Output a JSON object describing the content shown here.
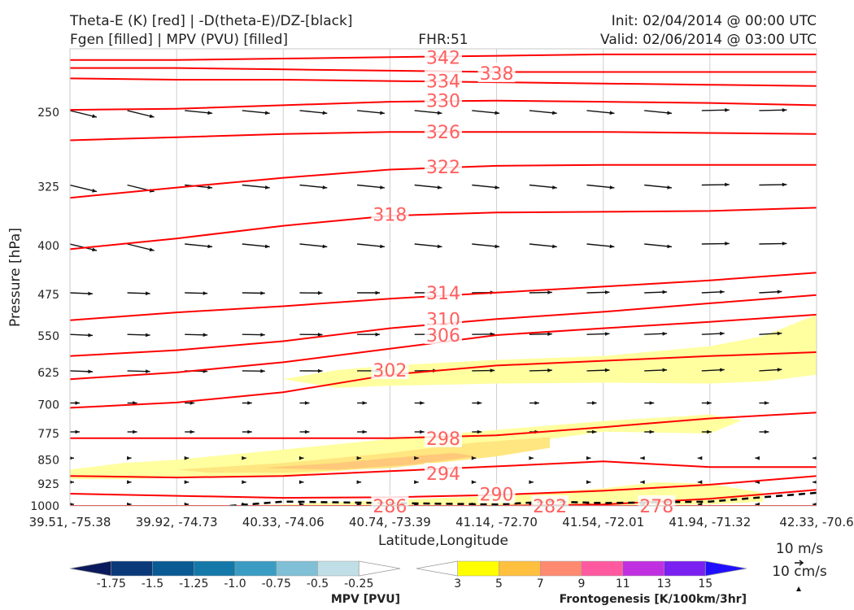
{
  "header": {
    "left_line1": "Theta-E (K) [red] | -D(theta-E)/DZ-[black]",
    "left_line2": "Fgen [filled] | MPV (PVU) [filled]",
    "center": "FHR:51",
    "right_line1": "Init: 02/04/2014 @ 00:00 UTC",
    "right_line2": "Valid: 02/06/2014 @ 03:00 UTC"
  },
  "chart_data": {
    "type": "cross-section",
    "xlabel": "Latitude,Longitude",
    "ylabel": "Pressure [hPa]",
    "xlim": [
      0,
      7
    ],
    "ylim": [
      200,
      1000
    ],
    "y_log_scale": true,
    "y_inverted": true,
    "x_ticks": [
      {
        "pos": 0,
        "label": "39.51, -75.38"
      },
      {
        "pos": 1,
        "label": "39.92, -74.73"
      },
      {
        "pos": 2,
        "label": "40.33, -74.06"
      },
      {
        "pos": 3,
        "label": "40.74, -73.39"
      },
      {
        "pos": 4,
        "label": "41.14, -72.70"
      },
      {
        "pos": 5,
        "label": "41.54, -72.01"
      },
      {
        "pos": 6,
        "label": "41.94, -71.32"
      },
      {
        "pos": 7,
        "label": "42.33, -70.6"
      }
    ],
    "y_ticks": [
      250,
      325,
      400,
      475,
      550,
      625,
      700,
      775,
      850,
      925,
      1000
    ],
    "theta_e_color": "#ff0000",
    "theta_e_label_color": "#ff6060",
    "theta_e_contours": [
      {
        "value": "342",
        "label": {
          "x": 3.5,
          "p": 206
        },
        "points": [
          [
            0,
            208
          ],
          [
            1,
            208
          ],
          [
            2,
            207
          ],
          [
            3,
            206
          ],
          [
            4,
            205
          ],
          [
            5,
            204
          ],
          [
            6,
            204
          ],
          [
            7,
            204
          ]
        ]
      },
      {
        "value": "338",
        "label": {
          "x": 4.0,
          "p": 218
        },
        "points": [
          [
            0,
            214
          ],
          [
            1,
            214
          ],
          [
            2,
            215
          ],
          [
            3,
            216
          ],
          [
            4,
            217
          ],
          [
            5,
            217
          ],
          [
            6,
            217
          ],
          [
            7,
            217
          ]
        ]
      },
      {
        "value": "334",
        "label": {
          "x": 3.5,
          "p": 224
        },
        "points": [
          [
            0,
            222
          ],
          [
            1,
            223
          ],
          [
            2,
            223
          ],
          [
            3,
            224
          ],
          [
            4,
            225
          ],
          [
            5,
            226
          ],
          [
            6,
            227
          ],
          [
            7,
            228
          ]
        ]
      },
      {
        "value": "330",
        "label": {
          "x": 3.5,
          "p": 240
        },
        "points": [
          [
            0,
            248
          ],
          [
            1,
            247
          ],
          [
            2,
            244
          ],
          [
            3,
            241
          ],
          [
            4,
            240
          ],
          [
            5,
            241
          ],
          [
            6,
            242
          ],
          [
            7,
            244
          ]
        ]
      },
      {
        "value": "326",
        "label": {
          "x": 3.5,
          "p": 268
        },
        "points": [
          [
            0,
            276
          ],
          [
            1,
            273
          ],
          [
            2,
            270
          ],
          [
            3,
            268
          ],
          [
            4,
            268
          ],
          [
            5,
            268
          ],
          [
            6,
            269
          ],
          [
            7,
            270
          ]
        ]
      },
      {
        "value": "322",
        "label": {
          "x": 3.5,
          "p": 303
        },
        "points": [
          [
            0,
            338
          ],
          [
            1,
            326
          ],
          [
            2,
            315
          ],
          [
            3,
            306
          ],
          [
            4,
            302
          ],
          [
            5,
            301
          ],
          [
            6,
            301
          ],
          [
            7,
            301
          ]
        ]
      },
      {
        "value": "318",
        "label": {
          "x": 3.0,
          "p": 358
        },
        "points": [
          [
            0,
            405
          ],
          [
            1,
            390
          ],
          [
            2,
            373
          ],
          [
            3,
            360
          ],
          [
            4,
            356
          ],
          [
            5,
            355
          ],
          [
            6,
            354
          ],
          [
            7,
            350
          ]
        ]
      },
      {
        "value": "314",
        "label": {
          "x": 3.5,
          "p": 472
        },
        "points": [
          [
            0,
            520
          ],
          [
            1,
            506
          ],
          [
            2,
            495
          ],
          [
            3,
            482
          ],
          [
            4,
            472
          ],
          [
            5,
            462
          ],
          [
            6,
            452
          ],
          [
            7,
            440
          ]
        ]
      },
      {
        "value": "310",
        "label": {
          "x": 3.5,
          "p": 518
        },
        "points": [
          [
            0,
            590
          ],
          [
            1,
            578
          ],
          [
            2,
            560
          ],
          [
            3,
            535
          ],
          [
            4,
            518
          ],
          [
            5,
            505
          ],
          [
            6,
            490
          ],
          [
            7,
            476
          ]
        ]
      },
      {
        "value": "306",
        "label": {
          "x": 3.5,
          "p": 548
        },
        "points": [
          [
            0,
            640
          ],
          [
            1,
            625
          ],
          [
            2,
            603
          ],
          [
            3,
            575
          ],
          [
            4,
            548
          ],
          [
            5,
            535
          ],
          [
            6,
            523
          ],
          [
            7,
            510
          ]
        ]
      },
      {
        "value": "302",
        "label": {
          "x": 3.0,
          "p": 620
        },
        "points": [
          [
            0,
            708
          ],
          [
            1,
            695
          ],
          [
            2,
            670
          ],
          [
            3,
            630
          ],
          [
            4,
            610
          ],
          [
            5,
            600
          ],
          [
            6,
            590
          ],
          [
            7,
            582
          ]
        ]
      },
      {
        "value": "298",
        "label": {
          "x": 3.5,
          "p": 788
        },
        "points": [
          [
            0,
            788
          ],
          [
            1,
            788
          ],
          [
            2,
            788
          ],
          [
            3,
            788
          ],
          [
            4,
            780
          ],
          [
            5,
            758
          ],
          [
            6,
            735
          ],
          [
            7,
            720
          ]
        ]
      },
      {
        "value": "294",
        "label": {
          "x": 3.5,
          "p": 892
        },
        "points": [
          [
            0,
            900
          ],
          [
            1,
            905
          ],
          [
            2,
            900
          ],
          [
            3,
            885
          ],
          [
            4,
            870
          ],
          [
            5,
            855
          ],
          [
            6,
            872
          ],
          [
            7,
            872
          ]
        ]
      },
      {
        "value": "290",
        "label": {
          "x": 4.0,
          "p": 960
        },
        "points": [
          [
            0,
            958
          ],
          [
            1,
            965
          ],
          [
            2,
            972
          ],
          [
            3,
            970
          ],
          [
            4,
            962
          ],
          [
            5,
            948
          ],
          [
            6,
            928
          ],
          [
            7,
            900
          ]
        ]
      },
      {
        "value": "286",
        "label": {
          "x": 3.0,
          "p": 1000
        },
        "points": [
          [
            0,
            1000
          ],
          [
            1,
            1000
          ],
          [
            2,
            1000
          ],
          [
            3,
            1000
          ],
          [
            4,
            1000
          ],
          [
            5,
            995
          ],
          [
            6,
            975
          ],
          [
            7,
            945
          ]
        ]
      },
      {
        "value": "282",
        "label": {
          "x": 4.5,
          "p": 1000
        },
        "points": [
          [
            0,
            1000
          ],
          [
            1,
            1000
          ],
          [
            2,
            1000
          ],
          [
            3,
            1000
          ],
          [
            4,
            1000
          ],
          [
            5,
            1000
          ],
          [
            6,
            1000
          ],
          [
            7,
            1000
          ]
        ]
      },
      {
        "value": "278",
        "label": {
          "x": 5.5,
          "p": 1000
        },
        "points": [
          [
            0,
            1000
          ],
          [
            1,
            1000
          ],
          [
            2,
            1000
          ],
          [
            3,
            1000
          ],
          [
            4,
            1000
          ],
          [
            5,
            1000
          ],
          [
            6,
            1000
          ],
          [
            7,
            1000
          ]
        ]
      }
    ],
    "fgen_filled": [
      {
        "level": "1-3",
        "color": "#ffffa0",
        "points": [
          [
            2.0,
            640
          ],
          [
            2.5,
            620
          ],
          [
            3,
            610
          ],
          [
            4,
            598
          ],
          [
            5,
            590
          ],
          [
            6,
            570
          ],
          [
            6.5,
            550
          ],
          [
            7,
            510
          ],
          [
            7,
            630
          ],
          [
            6.5,
            645
          ],
          [
            6,
            650
          ],
          [
            5,
            648
          ],
          [
            4,
            650
          ],
          [
            3,
            655
          ],
          [
            2.5,
            660
          ]
        ]
      },
      {
        "level": "1-3",
        "color": "#ffffa0",
        "points": [
          [
            0,
            880
          ],
          [
            0.5,
            860
          ],
          [
            1,
            850
          ],
          [
            2,
            820
          ],
          [
            3,
            790
          ],
          [
            4,
            765
          ],
          [
            5,
            742
          ],
          [
            6,
            725
          ],
          [
            6.3,
            740
          ],
          [
            6,
            775
          ],
          [
            5,
            770
          ],
          [
            4,
            810
          ],
          [
            3,
            870
          ],
          [
            2,
            900
          ],
          [
            1,
            905
          ],
          [
            0.5,
            910
          ],
          [
            0,
            910
          ]
        ]
      },
      {
        "level": "1-3",
        "color": "#ffffa0",
        "points": [
          [
            1.2,
            1000
          ],
          [
            2,
            995
          ],
          [
            3,
            980
          ],
          [
            4,
            965
          ],
          [
            5,
            940
          ],
          [
            5.5,
            920
          ],
          [
            6,
            925
          ],
          [
            6.5,
            955
          ],
          [
            6.5,
            985
          ],
          [
            6,
            995
          ],
          [
            5,
            1000
          ]
        ]
      },
      {
        "level": "3-5",
        "color": "#ffe680",
        "points": [
          [
            1,
            880
          ],
          [
            2,
            860
          ],
          [
            3,
            830
          ],
          [
            3.8,
            800
          ],
          [
            4.5,
            785
          ],
          [
            4.5,
            815
          ],
          [
            4,
            840
          ],
          [
            3,
            875
          ],
          [
            2,
            890
          ],
          [
            1.3,
            890
          ]
        ]
      },
      {
        "level": "5-7",
        "color": "#ffc87a",
        "points": [
          [
            1.8,
            875
          ],
          [
            2.5,
            860
          ],
          [
            3,
            845
          ],
          [
            3.6,
            830
          ],
          [
            3.8,
            840
          ],
          [
            3.2,
            865
          ],
          [
            2.5,
            880
          ]
        ]
      }
    ],
    "mpv_dashed": {
      "color": "#000000",
      "points": [
        [
          1.5,
          1000
        ],
        [
          2,
          985
        ],
        [
          3,
          990
        ],
        [
          4,
          995
        ],
        [
          4.5,
          985
        ],
        [
          5,
          990
        ],
        [
          6,
          985
        ],
        [
          7,
          955
        ]
      ]
    },
    "fgen_colorbar": {
      "label": "Frontogenesis [K/100km/3hr]",
      "tick_labels": [
        "3",
        "5",
        "7",
        "9",
        "11",
        "13",
        "15"
      ],
      "colors": [
        "#ffffff",
        "#ffff00",
        "#ffc040",
        "#ff8a70",
        "#ff5aa0",
        "#c030e0",
        "#7a20f0",
        "#2010ff"
      ]
    },
    "mpv_colorbar": {
      "label": "MPV [PVU]",
      "tick_labels": [
        "-1.75",
        "-1.5",
        "-1.25",
        "-1.0",
        "-0.75",
        "-0.5",
        "-0.25"
      ],
      "colors": [
        "#0a1a5c",
        "#0b3a7a",
        "#0a5a94",
        "#1478a8",
        "#3a9cc2",
        "#80c0d6",
        "#c0dee6",
        "#ffffff"
      ]
    },
    "wind_key": {
      "line1": "10 m/s",
      "line2": "10 cm/s"
    }
  }
}
